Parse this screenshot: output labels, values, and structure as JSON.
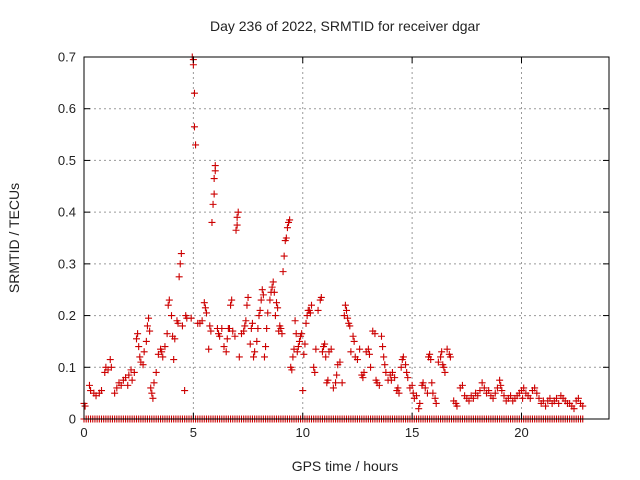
{
  "chart_data": {
    "type": "scatter",
    "title": "Day 236 of 2022, SRMTID for receiver dgar",
    "xlabel": "GPS time / hours",
    "ylabel": "SRMTID / TECUs",
    "xlim": [
      0,
      24
    ],
    "ylim": [
      0,
      0.7
    ],
    "xticks": [
      0,
      5,
      10,
      15,
      20
    ],
    "yticks": [
      0,
      0.1,
      0.2,
      0.3,
      0.4,
      0.5,
      0.6,
      0.7
    ],
    "xtick_labels": [
      "0",
      "5",
      "10",
      "15",
      "20"
    ],
    "ytick_labels": [
      "0",
      "0.1",
      "0.2",
      "0.3",
      "0.4",
      "0.5",
      "0.6",
      "0.7"
    ],
    "grid": true,
    "marker": "plus",
    "color": "#cc0000",
    "series": [
      {
        "name": "SRMTID",
        "points": [
          [
            0.0,
            0.03
          ],
          [
            0.05,
            0.025
          ],
          [
            0.25,
            0.065
          ],
          [
            0.3,
            0.055
          ],
          [
            0.45,
            0.05
          ],
          [
            0.55,
            0.045
          ],
          [
            0.7,
            0.05
          ],
          [
            0.8,
            0.055
          ],
          [
            0.95,
            0.09
          ],
          [
            1.0,
            0.1
          ],
          [
            1.1,
            0.095
          ],
          [
            1.2,
            0.115
          ],
          [
            1.25,
            0.1
          ],
          [
            1.4,
            0.05
          ],
          [
            1.5,
            0.06
          ],
          [
            1.6,
            0.07
          ],
          [
            1.7,
            0.065
          ],
          [
            1.8,
            0.075
          ],
          [
            1.9,
            0.08
          ],
          [
            2.0,
            0.065
          ],
          [
            2.05,
            0.085
          ],
          [
            2.15,
            0.095
          ],
          [
            2.2,
            0.075
          ],
          [
            2.3,
            0.09
          ],
          [
            2.4,
            0.155
          ],
          [
            2.45,
            0.165
          ],
          [
            2.5,
            0.14
          ],
          [
            2.55,
            0.12
          ],
          [
            2.6,
            0.11
          ],
          [
            2.7,
            0.105
          ],
          [
            2.75,
            0.13
          ],
          [
            2.85,
            0.15
          ],
          [
            2.9,
            0.18
          ],
          [
            2.95,
            0.195
          ],
          [
            3.0,
            0.17
          ],
          [
            3.05,
            0.06
          ],
          [
            3.1,
            0.05
          ],
          [
            3.15,
            0.04
          ],
          [
            3.2,
            0.07
          ],
          [
            3.3,
            0.09
          ],
          [
            3.4,
            0.125
          ],
          [
            3.5,
            0.135
          ],
          [
            3.55,
            0.13
          ],
          [
            3.6,
            0.12
          ],
          [
            3.7,
            0.14
          ],
          [
            3.8,
            0.165
          ],
          [
            3.85,
            0.22
          ],
          [
            3.9,
            0.23
          ],
          [
            4.0,
            0.2
          ],
          [
            4.05,
            0.16
          ],
          [
            4.1,
            0.115
          ],
          [
            4.15,
            0.155
          ],
          [
            4.25,
            0.19
          ],
          [
            4.3,
            0.185
          ],
          [
            4.35,
            0.275
          ],
          [
            4.4,
            0.3
          ],
          [
            4.45,
            0.32
          ],
          [
            4.5,
            0.18
          ],
          [
            4.6,
            0.055
          ],
          [
            4.65,
            0.2
          ],
          [
            4.7,
            0.195
          ],
          [
            4.9,
            0.195
          ],
          [
            4.95,
            0.7
          ],
          [
            5.0,
            0.695
          ],
          [
            5.0,
            0.685
          ],
          [
            5.05,
            0.63
          ],
          [
            5.05,
            0.565
          ],
          [
            5.1,
            0.53
          ],
          [
            5.2,
            0.185
          ],
          [
            5.3,
            0.185
          ],
          [
            5.4,
            0.19
          ],
          [
            5.5,
            0.225
          ],
          [
            5.55,
            0.215
          ],
          [
            5.6,
            0.205
          ],
          [
            5.7,
            0.135
          ],
          [
            5.75,
            0.18
          ],
          [
            5.8,
            0.17
          ],
          [
            5.85,
            0.38
          ],
          [
            5.9,
            0.415
          ],
          [
            5.95,
            0.435
          ],
          [
            5.95,
            0.465
          ],
          [
            6.0,
            0.48
          ],
          [
            6.0,
            0.49
          ],
          [
            6.1,
            0.175
          ],
          [
            6.15,
            0.165
          ],
          [
            6.2,
            0.16
          ],
          [
            6.3,
            0.175
          ],
          [
            6.4,
            0.14
          ],
          [
            6.5,
            0.13
          ],
          [
            6.55,
            0.155
          ],
          [
            6.6,
            0.175
          ],
          [
            6.65,
            0.175
          ],
          [
            6.7,
            0.22
          ],
          [
            6.75,
            0.23
          ],
          [
            6.8,
            0.17
          ],
          [
            6.9,
            0.16
          ],
          [
            6.95,
            0.365
          ],
          [
            7.0,
            0.375
          ],
          [
            7.0,
            0.39
          ],
          [
            7.05,
            0.4
          ],
          [
            7.1,
            0.12
          ],
          [
            7.2,
            0.165
          ],
          [
            7.3,
            0.17
          ],
          [
            7.35,
            0.18
          ],
          [
            7.4,
            0.19
          ],
          [
            7.45,
            0.22
          ],
          [
            7.5,
            0.235
          ],
          [
            7.6,
            0.145
          ],
          [
            7.65,
            0.175
          ],
          [
            7.7,
            0.185
          ],
          [
            7.75,
            0.12
          ],
          [
            7.8,
            0.13
          ],
          [
            7.9,
            0.15
          ],
          [
            7.95,
            0.175
          ],
          [
            8.0,
            0.2
          ],
          [
            8.05,
            0.21
          ],
          [
            8.1,
            0.23
          ],
          [
            8.15,
            0.25
          ],
          [
            8.2,
            0.24
          ],
          [
            8.25,
            0.12
          ],
          [
            8.3,
            0.14
          ],
          [
            8.35,
            0.175
          ],
          [
            8.4,
            0.205
          ],
          [
            8.5,
            0.23
          ],
          [
            8.55,
            0.245
          ],
          [
            8.6,
            0.255
          ],
          [
            8.65,
            0.265
          ],
          [
            8.7,
            0.245
          ],
          [
            8.75,
            0.2
          ],
          [
            8.8,
            0.225
          ],
          [
            8.85,
            0.215
          ],
          [
            8.9,
            0.17
          ],
          [
            8.95,
            0.18
          ],
          [
            9.0,
            0.175
          ],
          [
            9.05,
            0.165
          ],
          [
            9.1,
            0.285
          ],
          [
            9.15,
            0.315
          ],
          [
            9.2,
            0.345
          ],
          [
            9.25,
            0.35
          ],
          [
            9.3,
            0.37
          ],
          [
            9.35,
            0.38
          ],
          [
            9.4,
            0.385
          ],
          [
            9.45,
            0.1
          ],
          [
            9.5,
            0.095
          ],
          [
            9.55,
            0.12
          ],
          [
            9.6,
            0.135
          ],
          [
            9.65,
            0.19
          ],
          [
            9.7,
            0.165
          ],
          [
            9.75,
            0.13
          ],
          [
            9.8,
            0.14
          ],
          [
            9.85,
            0.15
          ],
          [
            9.9,
            0.16
          ],
          [
            9.95,
            0.165
          ],
          [
            10.0,
            0.055
          ],
          [
            10.05,
            0.125
          ],
          [
            10.1,
            0.145
          ],
          [
            10.15,
            0.185
          ],
          [
            10.2,
            0.2
          ],
          [
            10.25,
            0.21
          ],
          [
            10.3,
            0.21
          ],
          [
            10.35,
            0.205
          ],
          [
            10.4,
            0.22
          ],
          [
            10.5,
            0.1
          ],
          [
            10.55,
            0.09
          ],
          [
            10.6,
            0.135
          ],
          [
            10.7,
            0.21
          ],
          [
            10.8,
            0.23
          ],
          [
            10.85,
            0.235
          ],
          [
            10.9,
            0.13
          ],
          [
            10.95,
            0.14
          ],
          [
            11.0,
            0.145
          ],
          [
            11.05,
            0.12
          ],
          [
            11.1,
            0.07
          ],
          [
            11.15,
            0.075
          ],
          [
            11.2,
            0.13
          ],
          [
            11.3,
            0.135
          ],
          [
            11.4,
            0.06
          ],
          [
            11.5,
            0.07
          ],
          [
            11.55,
            0.085
          ],
          [
            11.6,
            0.105
          ],
          [
            11.7,
            0.11
          ],
          [
            11.8,
            0.07
          ],
          [
            11.9,
            0.2
          ],
          [
            11.95,
            0.22
          ],
          [
            12.0,
            0.21
          ],
          [
            12.05,
            0.195
          ],
          [
            12.1,
            0.185
          ],
          [
            12.15,
            0.18
          ],
          [
            12.2,
            0.13
          ],
          [
            12.3,
            0.16
          ],
          [
            12.35,
            0.15
          ],
          [
            12.4,
            0.12
          ],
          [
            12.5,
            0.115
          ],
          [
            12.6,
            0.135
          ],
          [
            12.7,
            0.085
          ],
          [
            12.75,
            0.08
          ],
          [
            12.8,
            0.09
          ],
          [
            12.9,
            0.13
          ],
          [
            13.0,
            0.135
          ],
          [
            13.05,
            0.125
          ],
          [
            13.1,
            0.1
          ],
          [
            13.2,
            0.17
          ],
          [
            13.3,
            0.165
          ],
          [
            13.35,
            0.075
          ],
          [
            13.4,
            0.07
          ],
          [
            13.5,
            0.065
          ],
          [
            13.6,
            0.16
          ],
          [
            13.65,
            0.14
          ],
          [
            13.7,
            0.12
          ],
          [
            13.75,
            0.105
          ],
          [
            13.8,
            0.09
          ],
          [
            13.9,
            0.075
          ],
          [
            14.0,
            0.085
          ],
          [
            14.05,
            0.075
          ],
          [
            14.1,
            0.09
          ],
          [
            14.2,
            0.08
          ],
          [
            14.3,
            0.055
          ],
          [
            14.35,
            0.06
          ],
          [
            14.4,
            0.05
          ],
          [
            14.5,
            0.1
          ],
          [
            14.55,
            0.115
          ],
          [
            14.6,
            0.12
          ],
          [
            14.7,
            0.105
          ],
          [
            14.75,
            0.09
          ],
          [
            14.8,
            0.08
          ],
          [
            14.9,
            0.06
          ],
          [
            15.0,
            0.065
          ],
          [
            15.05,
            0.05
          ],
          [
            15.1,
            0.04
          ],
          [
            15.2,
            0.045
          ],
          [
            15.3,
            0.02
          ],
          [
            15.35,
            0.03
          ],
          [
            15.45,
            0.065
          ],
          [
            15.5,
            0.07
          ],
          [
            15.6,
            0.06
          ],
          [
            15.7,
            0.05
          ],
          [
            15.75,
            0.12
          ],
          [
            15.8,
            0.125
          ],
          [
            15.85,
            0.115
          ],
          [
            15.9,
            0.07
          ],
          [
            15.95,
            0.05
          ],
          [
            16.05,
            0.04
          ],
          [
            16.1,
            0.03
          ],
          [
            16.2,
            0.11
          ],
          [
            16.3,
            0.12
          ],
          [
            16.35,
            0.13
          ],
          [
            16.4,
            0.105
          ],
          [
            16.45,
            0.1
          ],
          [
            16.5,
            0.09
          ],
          [
            16.6,
            0.135
          ],
          [
            16.7,
            0.125
          ],
          [
            16.75,
            0.12
          ],
          [
            16.9,
            0.035
          ],
          [
            17.0,
            0.03
          ],
          [
            17.05,
            0.025
          ],
          [
            17.2,
            0.06
          ],
          [
            17.3,
            0.065
          ],
          [
            17.4,
            0.045
          ],
          [
            17.5,
            0.04
          ],
          [
            17.6,
            0.035
          ],
          [
            17.7,
            0.045
          ],
          [
            17.8,
            0.04
          ],
          [
            17.9,
            0.05
          ],
          [
            18.0,
            0.045
          ],
          [
            18.1,
            0.055
          ],
          [
            18.2,
            0.07
          ],
          [
            18.3,
            0.06
          ],
          [
            18.4,
            0.05
          ],
          [
            18.5,
            0.055
          ],
          [
            18.6,
            0.045
          ],
          [
            18.7,
            0.04
          ],
          [
            18.8,
            0.05
          ],
          [
            18.9,
            0.06
          ],
          [
            19.0,
            0.075
          ],
          [
            19.05,
            0.065
          ],
          [
            19.1,
            0.055
          ],
          [
            19.2,
            0.045
          ],
          [
            19.3,
            0.035
          ],
          [
            19.4,
            0.04
          ],
          [
            19.5,
            0.045
          ],
          [
            19.6,
            0.035
          ],
          [
            19.7,
            0.04
          ],
          [
            19.8,
            0.045
          ],
          [
            19.9,
            0.05
          ],
          [
            20.0,
            0.055
          ],
          [
            20.05,
            0.04
          ],
          [
            20.1,
            0.06
          ],
          [
            20.2,
            0.05
          ],
          [
            20.3,
            0.045
          ],
          [
            20.4,
            0.04
          ],
          [
            20.5,
            0.055
          ],
          [
            20.6,
            0.06
          ],
          [
            20.7,
            0.05
          ],
          [
            20.8,
            0.04
          ],
          [
            20.9,
            0.03
          ],
          [
            21.0,
            0.035
          ],
          [
            21.1,
            0.025
          ],
          [
            21.2,
            0.035
          ],
          [
            21.3,
            0.04
          ],
          [
            21.4,
            0.03
          ],
          [
            21.5,
            0.035
          ],
          [
            21.6,
            0.04
          ],
          [
            21.7,
            0.03
          ],
          [
            21.8,
            0.045
          ],
          [
            21.9,
            0.04
          ],
          [
            22.0,
            0.035
          ],
          [
            22.1,
            0.03
          ],
          [
            22.2,
            0.03
          ],
          [
            22.3,
            0.025
          ],
          [
            22.4,
            0.02
          ],
          [
            22.5,
            0.035
          ],
          [
            22.6,
            0.04
          ],
          [
            22.7,
            0.03
          ],
          [
            22.8,
            0.025
          ]
        ],
        "zero_baseline": {
          "x_start": 0.0,
          "x_end": 22.8,
          "x_step": 0.1,
          "y": 0
        }
      }
    ]
  }
}
